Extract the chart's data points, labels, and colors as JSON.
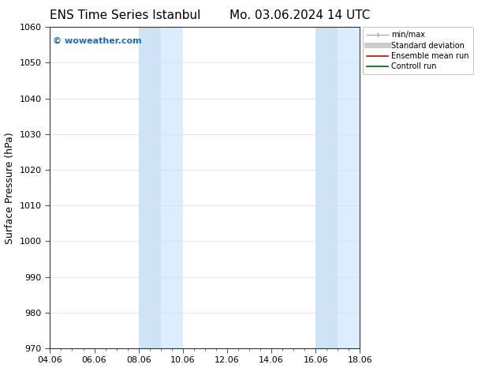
{
  "title_left": "ENS Time Series Istanbul",
  "title_right": "Mo. 03.06.2024 14 UTC",
  "ylabel": "Surface Pressure (hPa)",
  "xlabel": "",
  "ylim": [
    970,
    1060
  ],
  "yticks": [
    970,
    980,
    990,
    1000,
    1010,
    1020,
    1030,
    1040,
    1050,
    1060
  ],
  "xlim_start": 0,
  "xlim_end": 14,
  "xtick_labels": [
    "04.06",
    "06.06",
    "08.06",
    "10.06",
    "12.06",
    "14.06",
    "16.06",
    "18.06"
  ],
  "xtick_positions": [
    0,
    2,
    4,
    6,
    8,
    10,
    12,
    14
  ],
  "shaded_bands": [
    {
      "x_start": 4.0,
      "x_end": 5.0,
      "color": "#cfe3f5"
    },
    {
      "x_start": 5.0,
      "x_end": 6.0,
      "color": "#daeeff"
    },
    {
      "x_start": 12.0,
      "x_end": 13.0,
      "color": "#cfe3f5"
    },
    {
      "x_start": 13.0,
      "x_end": 14.0,
      "color": "#daeeff"
    }
  ],
  "watermark_text": "© woweather.com",
  "watermark_color": "#1a6bc0",
  "background_color": "#ffffff",
  "plot_bg_color": "#ffffff",
  "legend_items": [
    {
      "label": "min/max",
      "color": "#aaaaaa",
      "lw": 1.0
    },
    {
      "label": "Standard deviation",
      "color": "#cccccc",
      "lw": 5.0
    },
    {
      "label": "Ensemble mean run",
      "color": "#cc0000",
      "lw": 1.2
    },
    {
      "label": "Controll run",
      "color": "#006600",
      "lw": 1.2
    }
  ],
  "grid_color": "#dddddd",
  "title_fontsize": 11,
  "axis_label_fontsize": 9,
  "tick_fontsize": 8,
  "legend_fontsize": 7,
  "watermark_fontsize": 8,
  "font_family": "DejaVu Sans"
}
